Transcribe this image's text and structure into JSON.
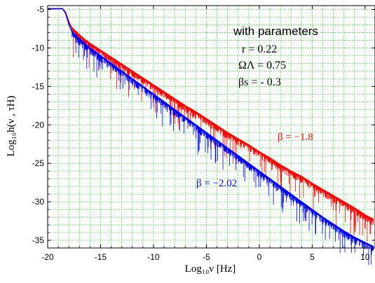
{
  "chart_data": {
    "type": "line",
    "title": "",
    "xlabel": "Log₁₀ν [Hz]",
    "ylabel": "Log₁₀h(ν , τH)",
    "xlim": [
      -20,
      11
    ],
    "ylim": [
      -36,
      -4.5
    ],
    "x_ticks": [
      -20,
      -15,
      -10,
      -5,
      0,
      5,
      10
    ],
    "y_ticks": [
      -5,
      -10,
      -15,
      -20,
      -25,
      -30,
      -35
    ],
    "grid": true,
    "series": [
      {
        "name": "β = −1.8",
        "color": "#ff0000",
        "x": [
          -20,
          -18.6,
          -18.3,
          -18.0,
          -17.7,
          -17.3,
          -17.0,
          -16.5,
          -16.0,
          -15.0,
          -14.0,
          -13.0,
          -12.0,
          -11.0,
          -10.0,
          -9.0,
          -8.0,
          -7.0,
          -6.0,
          -5.0,
          -4.0,
          -3.0,
          -2.0,
          -1.0,
          0.0,
          1.0,
          2.0,
          3.0,
          4.0,
          5.0,
          6.0,
          7.0,
          8.0,
          9.0,
          10.0,
          10.8
        ],
        "y": [
          -4.9,
          -4.9,
          -5.4,
          -6.6,
          -7.4,
          -7.9,
          -8.3,
          -8.9,
          -9.4,
          -10.3,
          -11.2,
          -12.1,
          -13.0,
          -13.9,
          -14.8,
          -15.7,
          -16.6,
          -17.5,
          -18.3,
          -19.2,
          -20.1,
          -21.0,
          -21.8,
          -22.6,
          -23.5,
          -24.3,
          -25.2,
          -26.0,
          -26.7,
          -27.6,
          -28.4,
          -29.2,
          -30.0,
          -30.8,
          -31.7,
          -32.3
        ]
      },
      {
        "name": "β = −2.02",
        "color": "#0000ff",
        "x": [
          -20,
          -18.6,
          -18.3,
          -18.0,
          -17.7,
          -17.3,
          -17.0,
          -16.5,
          -16.0,
          -15.0,
          -14.0,
          -13.0,
          -12.0,
          -11.0,
          -10.0,
          -9.0,
          -8.0,
          -7.0,
          -6.0,
          -5.0,
          -4.0,
          -3.0,
          -2.0,
          -1.0,
          0.0,
          1.0,
          2.0,
          3.0,
          4.0,
          5.0,
          6.0,
          7.0,
          8.0,
          9.0,
          10.0,
          10.8
        ],
        "y": [
          -4.9,
          -4.9,
          -5.5,
          -6.9,
          -7.9,
          -8.4,
          -8.8,
          -9.4,
          -10.0,
          -11.0,
          -12.0,
          -13.0,
          -14.0,
          -15.0,
          -16.0,
          -17.0,
          -18.0,
          -19.0,
          -20.0,
          -21.0,
          -22.0,
          -23.0,
          -24.0,
          -25.0,
          -26.0,
          -27.0,
          -28.0,
          -29.0,
          -30.0,
          -31.0,
          -32.0,
          -32.9,
          -33.8,
          -34.6,
          -35.3,
          -35.8
        ]
      }
    ],
    "annotations": {
      "heading": "with parameters",
      "r": "r = 0.22",
      "omega": "ΩΛ = 0.75",
      "beta_s": "βs = - 0.3"
    }
  }
}
